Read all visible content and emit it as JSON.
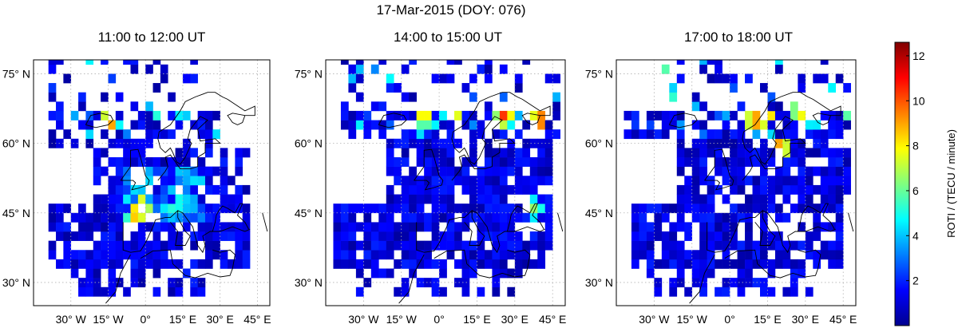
{
  "figure": {
    "title": "17-Mar-2015 (DOY: 076)"
  },
  "chart_data": {
    "type": "heatmap",
    "title": "17-Mar-2015 (DOY: 076)",
    "xlabel": "",
    "ylabel": "",
    "lon_range": [
      -45,
      50
    ],
    "lat_range": [
      25,
      78
    ],
    "x_ticks": [
      "30° W",
      "15° W",
      "0°",
      "15° E",
      "30° E",
      "45° E"
    ],
    "y_ticks": [
      "30° N",
      "45° N",
      "60° N",
      "75° N"
    ],
    "grid": true,
    "colorbar": {
      "label": "ROTI / (TECU / minute)",
      "range": [
        0,
        12.6
      ],
      "ticks": [
        "2",
        "4",
        "6",
        "8",
        "10",
        "12"
      ],
      "colormap": "jet"
    },
    "panels": [
      {
        "subtitle": "11:00 to 12:00 UT",
        "lat_band_bounds": [
          35,
          45
        ],
        "peak_roti": 12.0,
        "hotspots": [
          {
            "lon": -2,
            "lat": 46,
            "value": 11.5
          },
          {
            "lon": -4,
            "lat": 44,
            "value": 9.0
          },
          {
            "lon": -14,
            "lat": 65,
            "value": 11.0
          },
          {
            "lon": 14,
            "lat": 47,
            "value": 6.0
          }
        ]
      },
      {
        "subtitle": "14:00 to 15:00 UT",
        "lat_band_bounds": [
          35,
          45
        ],
        "peak_roti": 12.0,
        "hotspots": [
          {
            "lon": 40,
            "lat": 65,
            "value": 11.5
          },
          {
            "lon": 26,
            "lat": 66,
            "value": 11.0
          },
          {
            "lon": 6,
            "lat": 67,
            "value": 10.0
          },
          {
            "lon": -6,
            "lat": 66,
            "value": 9.5
          },
          {
            "lon": 38,
            "lat": 46,
            "value": 7.0
          }
        ]
      },
      {
        "subtitle": "17:00 to 18:00 UT",
        "lat_band_bounds": [
          35,
          45
        ],
        "peak_roti": 12.0,
        "hotspots": [
          {
            "lon": 14,
            "lat": 66,
            "value": 11.5
          },
          {
            "lon": 10,
            "lat": 65,
            "value": 11.0
          },
          {
            "lon": 20,
            "lat": 59,
            "value": 11.0
          },
          {
            "lon": 46,
            "lat": 68,
            "value": 9.0
          },
          {
            "lon": 28,
            "lat": 67,
            "value": 9.5
          }
        ]
      }
    ]
  }
}
